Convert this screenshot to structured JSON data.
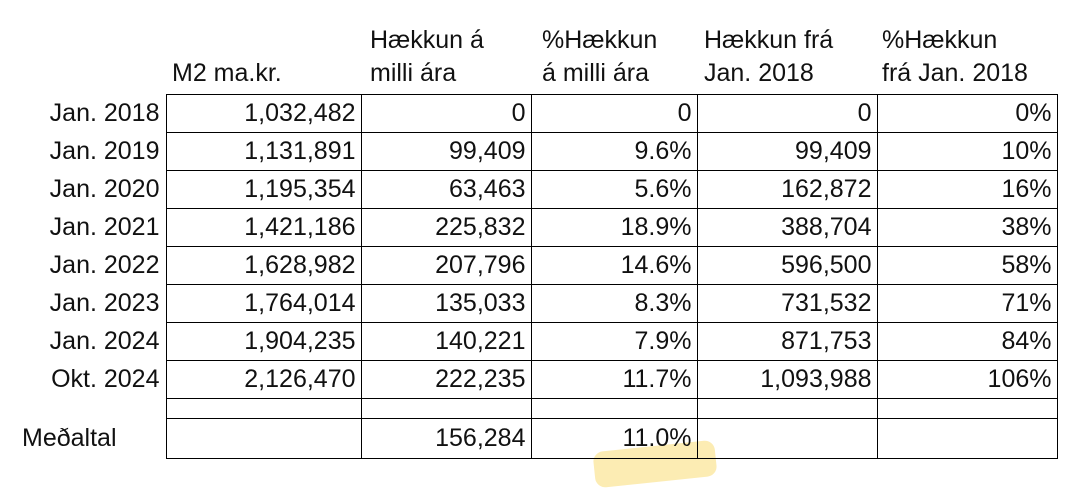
{
  "headers": {
    "col1": "M2 ma.kr.",
    "col2": "Hækkun á\nmilli ára",
    "col3": "%Hækkun\ná milli ára",
    "col4": "Hækkun frá\nJan. 2018",
    "col5": "%Hækkun\nfrá Jan. 2018"
  },
  "rows": [
    {
      "label": "Jan. 2018",
      "m2": "1,032,482",
      "hakkun": "0",
      "pct_hakkun": "0",
      "hakkun_fra": "0",
      "pct_fra": "0%"
    },
    {
      "label": "Jan. 2019",
      "m2": "1,131,891",
      "hakkun": "99,409",
      "pct_hakkun": "9.6%",
      "hakkun_fra": "99,409",
      "pct_fra": "10%"
    },
    {
      "label": "Jan. 2020",
      "m2": "1,195,354",
      "hakkun": "63,463",
      "pct_hakkun": "5.6%",
      "hakkun_fra": "162,872",
      "pct_fra": "16%"
    },
    {
      "label": "Jan. 2021",
      "m2": "1,421,186",
      "hakkun": "225,832",
      "pct_hakkun": "18.9%",
      "hakkun_fra": "388,704",
      "pct_fra": "38%"
    },
    {
      "label": "Jan. 2022",
      "m2": "1,628,982",
      "hakkun": "207,796",
      "pct_hakkun": "14.6%",
      "hakkun_fra": "596,500",
      "pct_fra": "58%"
    },
    {
      "label": "Jan. 2023",
      "m2": "1,764,014",
      "hakkun": "135,033",
      "pct_hakkun": "8.3%",
      "hakkun_fra": "731,532",
      "pct_fra": "71%"
    },
    {
      "label": "Jan. 2024",
      "m2": "1,904,235",
      "hakkun": "140,221",
      "pct_hakkun": "7.9%",
      "hakkun_fra": "871,753",
      "pct_fra": "84%"
    },
    {
      "label": "Okt. 2024",
      "m2": "2,126,470",
      "hakkun": "222,235",
      "pct_hakkun": "11.7%",
      "hakkun_fra": "1,093,988",
      "pct_fra": "106%"
    }
  ],
  "average": {
    "label": "Meðaltal",
    "hakkun": "156,284",
    "pct_hakkun": "11.0%"
  },
  "highlight_color": "#fbe9a6"
}
